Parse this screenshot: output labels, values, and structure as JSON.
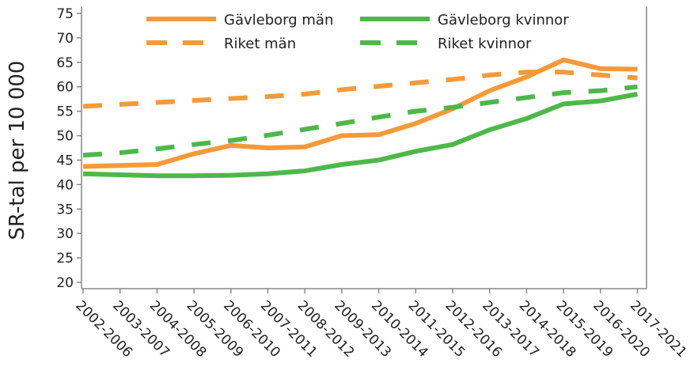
{
  "chart_data": {
    "type": "line",
    "title": "",
    "xlabel": "",
    "ylabel": "SR-tal per 10 000",
    "ylim": [
      20,
      75
    ],
    "yticks": [
      20,
      25,
      30,
      35,
      40,
      45,
      50,
      55,
      60,
      65,
      70,
      75
    ],
    "grid": false,
    "legend_position": "top",
    "categories": [
      "2002-2006",
      "2003-2007",
      "2004-2008",
      "2005-2009",
      "2006-2010",
      "2007-2011",
      "2008-2012",
      "2009-2013",
      "2010-2014",
      "2011-2015",
      "2012-2016",
      "2013-2017",
      "2014-2018",
      "2015-2019",
      "2016-2020",
      "2017-2021"
    ],
    "series": [
      {
        "name": "Gävleborg män",
        "color": "#f59a3a",
        "dash": false,
        "values": [
          43.7,
          43.9,
          44.1,
          46.3,
          48.0,
          47.5,
          47.7,
          50.0,
          50.2,
          52.5,
          55.5,
          59.2,
          62.0,
          65.5,
          63.7,
          63.6
        ]
      },
      {
        "name": "Gävleborg kvinnor",
        "color": "#4db84a",
        "dash": false,
        "values": [
          42.2,
          42.0,
          41.8,
          41.8,
          41.9,
          42.2,
          42.8,
          44.1,
          45.0,
          46.8,
          48.2,
          51.2,
          53.5,
          56.5,
          57.1,
          58.5
        ]
      },
      {
        "name": "Riket män",
        "color": "#f59a3a",
        "dash": true,
        "values": [
          56.0,
          56.4,
          56.8,
          57.2,
          57.6,
          58.0,
          58.5,
          59.4,
          60.1,
          60.8,
          61.5,
          62.4,
          63.0,
          63.0,
          62.4,
          61.8
        ]
      },
      {
        "name": "Riket kvinnor",
        "color": "#4db84a",
        "dash": true,
        "values": [
          46.0,
          46.5,
          47.3,
          48.2,
          49.0,
          50.1,
          51.3,
          52.5,
          53.8,
          55.0,
          55.8,
          56.8,
          57.8,
          58.8,
          59.2,
          60.0
        ]
      }
    ]
  }
}
